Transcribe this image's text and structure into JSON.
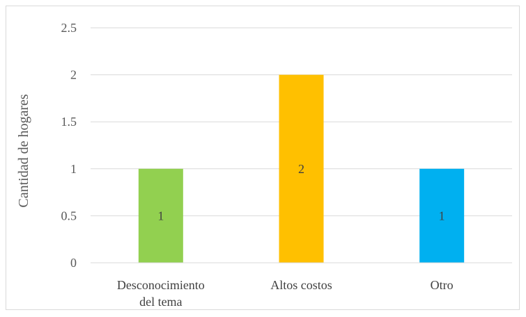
{
  "chart_data": {
    "type": "bar",
    "title": "",
    "xlabel": "",
    "ylabel": "Cantidad de hogares",
    "categories": [
      [
        "Desconocimiento",
        "del tema"
      ],
      [
        "Altos costos"
      ],
      [
        "Otro"
      ]
    ],
    "values": [
      1,
      2,
      1
    ],
    "data_labels": [
      "1",
      "2",
      "1"
    ],
    "colors": [
      "#92d050",
      "#ffc000",
      "#00b0f0"
    ],
    "ylim": [
      0,
      2.5
    ],
    "yticks": [
      0,
      0.5,
      1,
      1.5,
      2,
      2.5
    ],
    "ytick_labels": [
      "0",
      "0.5",
      "1",
      "1.5",
      "2",
      "2.5"
    ],
    "grid": true,
    "legend": false
  }
}
